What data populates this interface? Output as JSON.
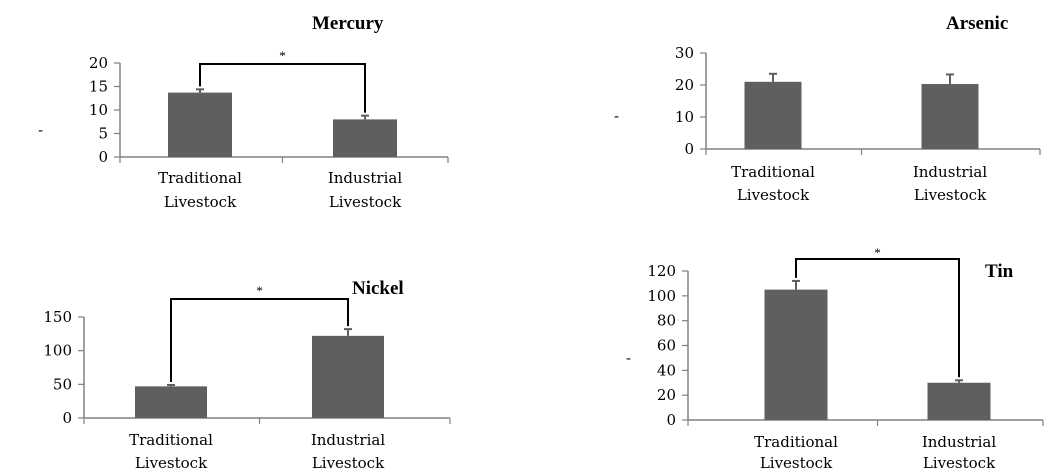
{
  "chart_data": [
    {
      "type": "bar",
      "title": "Mercury",
      "categories": [
        "Traditional Livestock",
        "Industrial Livestock"
      ],
      "values": [
        13.7,
        8.0
      ],
      "error": [
        0.7,
        0.8
      ],
      "ylim": [
        0,
        20
      ],
      "yticks": [
        0,
        5,
        10,
        15,
        20
      ],
      "significance": {
        "between": [
          0,
          1
        ],
        "label": "*"
      },
      "ylabel_mark": "-"
    },
    {
      "type": "bar",
      "title": "Arsenic",
      "categories": [
        "Traditional Livestock",
        "Industrial Livestock"
      ],
      "values": [
        21,
        20.3
      ],
      "error": [
        2.5,
        3.0
      ],
      "ylim": [
        0,
        30
      ],
      "yticks": [
        0,
        10,
        20,
        30
      ],
      "ylabel_mark": "-"
    },
    {
      "type": "bar",
      "title": "Nickel",
      "categories": [
        "Traditional Livestock",
        "Industrial Livestock"
      ],
      "values": [
        47,
        122
      ],
      "error": [
        2,
        10
      ],
      "ylim": [
        0,
        150
      ],
      "yticks": [
        0,
        50,
        100,
        150
      ],
      "significance": {
        "between": [
          0,
          1
        ],
        "label": "*"
      }
    },
    {
      "type": "bar",
      "title": "Tin",
      "categories": [
        "Traditional Livestock",
        "Industrial Livestock"
      ],
      "values": [
        105,
        30
      ],
      "error": [
        7,
        2
      ],
      "ylim": [
        0,
        120
      ],
      "yticks": [
        0,
        20,
        40,
        60,
        80,
        100,
        120
      ],
      "significance": {
        "between": [
          0,
          1
        ],
        "label": "*"
      },
      "ylabel_mark": "-"
    }
  ],
  "colors": {
    "bar": "#5f5f5f",
    "axis": "#808080",
    "text": "#000000"
  }
}
